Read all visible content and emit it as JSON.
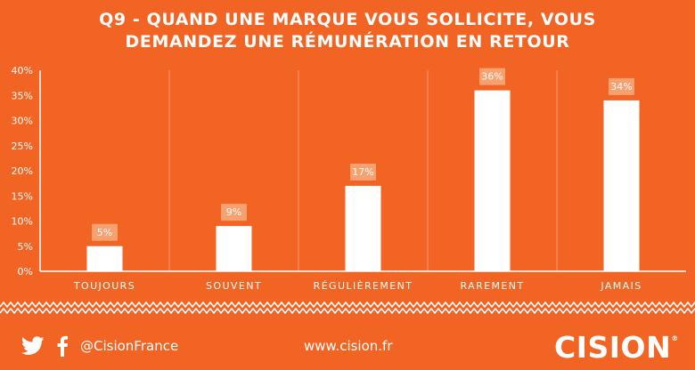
{
  "title_lines": [
    "Q9 - QUAND UNE MARQUE VOUS SOLLICITE, VOUS",
    "DEMANDEZ UNE RÉMUNÉRATION EN RETOUR"
  ],
  "chart_data": {
    "type": "bar",
    "title": "Q9 - QUAND UNE MARQUE VOUS SOLLICITE, VOUS DEMANDEZ UNE RÉMUNÉRATION EN RETOUR",
    "categories": [
      "TOUJOURS",
      "SOUVENT",
      "RÉGULIÈREMENT",
      "RAREMENT",
      "JAMAIS"
    ],
    "values": [
      5,
      9,
      17,
      36,
      34
    ],
    "value_labels": [
      "5%",
      "9%",
      "17%",
      "36%",
      "34%"
    ],
    "y_ticks": [
      "0%",
      "5%",
      "10%",
      "15%",
      "20%",
      "25%",
      "30%",
      "35%",
      "40%"
    ],
    "ylim": [
      0,
      40
    ],
    "unit": "%",
    "grid": false,
    "bar_color": "#FFFFFF",
    "label_box_color": "#F7A070"
  },
  "footer": {
    "twitter_icon": "twitter-bird-icon",
    "facebook_icon": "facebook-f-icon",
    "handle": "@CisionFrance",
    "website": "www.cision.fr",
    "logo": "CISION",
    "logo_mark": "®"
  },
  "colors": {
    "background": "#F26424",
    "foreground": "#FFFFFF"
  }
}
